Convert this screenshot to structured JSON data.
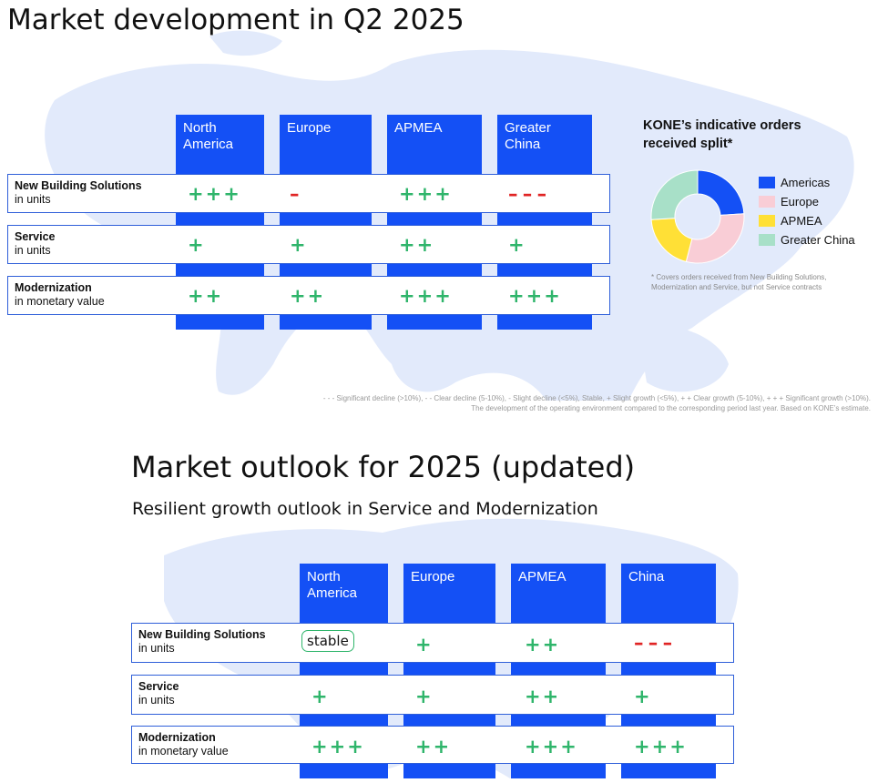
{
  "top": {
    "title": "Market development in Q2 2025",
    "columns": [
      "North\nAmerica",
      "Europe",
      "APMEA",
      "Greater\nChina"
    ],
    "rows": [
      {
        "name": "New Building Solutions",
        "unit": "in units",
        "values": [
          "+++",
          "–",
          "+++",
          "– – –"
        ]
      },
      {
        "name": "Service",
        "unit": "in units",
        "values": [
          "+",
          "+",
          "++",
          "+"
        ]
      },
      {
        "name": "Modernization",
        "unit": "in monetary value",
        "values": [
          "++",
          "++",
          "+++",
          "+++"
        ]
      }
    ],
    "pie": {
      "title": "KONE’s indicative orders received split*",
      "slices": [
        {
          "label": "Americas",
          "share": 0.24,
          "color": "#1450f5"
        },
        {
          "label": "Europe",
          "share": 0.3,
          "color": "#f9cdd6"
        },
        {
          "label": "APMEA",
          "share": 0.2,
          "color": "#ffe036"
        },
        {
          "label": "Greater China",
          "share": 0.26,
          "color": "#a8e0c8"
        }
      ],
      "footnote": "* Covers orders received from New Building Solutions, Modernization and Service, but not Service contracts"
    },
    "legend_line1": "- - - Significant decline (>10%), - - Clear decline (5-10%), - Slight decline (<5%), Stable, + Slight growth (<5%), + + Clear growth (5-10%), + + + Significant growth (>10%).",
    "legend_line2": "The development of the operating environment compared to the corresponding period last year. Based on KONE’s estimate."
  },
  "bottom": {
    "title": "Market outlook for 2025 (updated)",
    "subtitle": "Resilient growth outlook in Service and Modernization",
    "columns": [
      "North\nAmerica",
      "Europe",
      "APMEA",
      "China"
    ],
    "rows": [
      {
        "name": "New Building Solutions",
        "unit": "in units",
        "values": [
          "stable",
          "+",
          "++",
          "– – –"
        ]
      },
      {
        "name": "Service",
        "unit": "in units",
        "values": [
          "+",
          "+",
          "++",
          "+"
        ]
      },
      {
        "name": "Modernization",
        "unit": "in monetary value",
        "values": [
          "+++",
          "++",
          "+++",
          "+++"
        ]
      }
    ]
  },
  "colors": {
    "accent_blue": "#1450f5",
    "growth_green": "#2fb56b",
    "decline_red": "#e02424",
    "map": "#dfe8fb"
  }
}
